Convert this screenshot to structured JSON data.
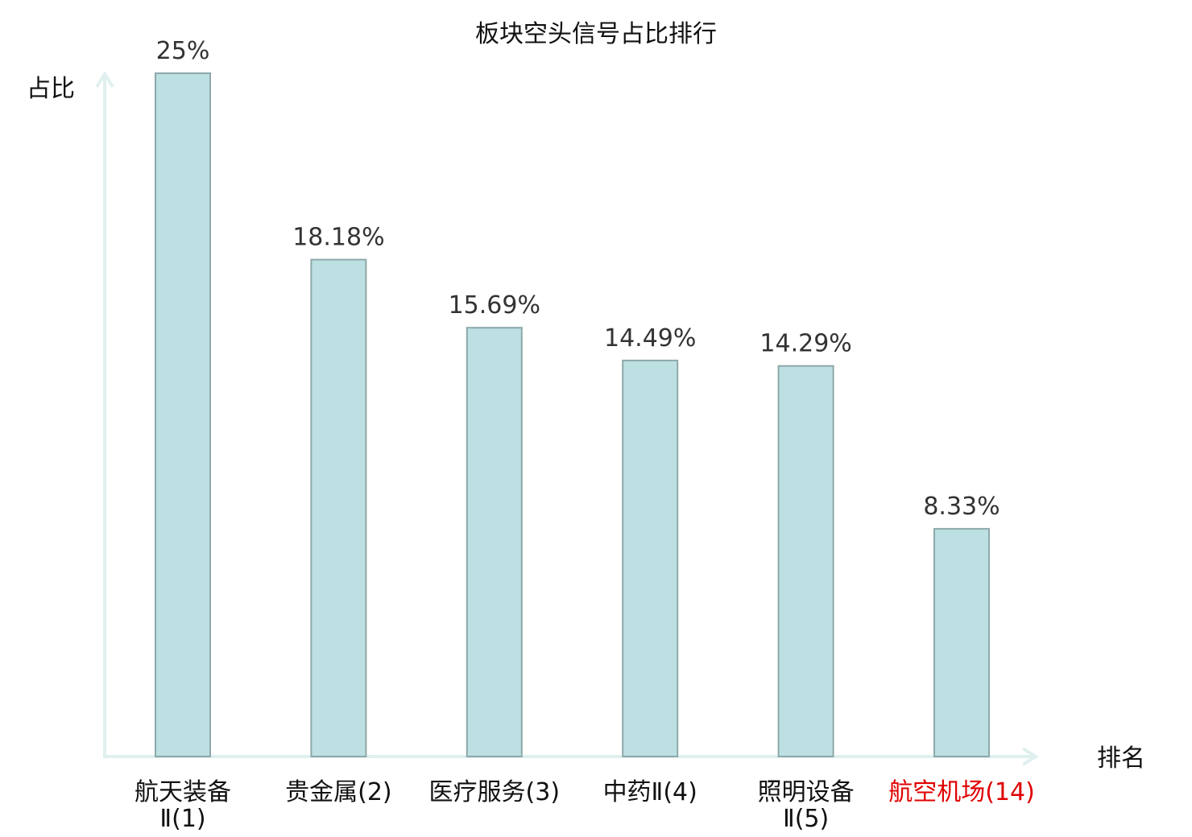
{
  "chart_data": {
    "type": "bar",
    "title": "板块空头信号占比排行",
    "xlabel": "排名",
    "ylabel": "占比",
    "ylim": [
      0,
      25
    ],
    "categories": [
      {
        "name": "航天装备Ⅱ(1)",
        "lines": [
          "航天装备",
          "Ⅱ(1)"
        ],
        "highlight": false
      },
      {
        "name": "贵金属(2)",
        "lines": [
          "贵金属(2)"
        ],
        "highlight": false
      },
      {
        "name": "医疗服务(3)",
        "lines": [
          "医疗服务(3)"
        ],
        "highlight": false
      },
      {
        "name": "中药Ⅱ(4)",
        "lines": [
          "中药Ⅱ(4)"
        ],
        "highlight": false
      },
      {
        "name": "照明设备Ⅱ(5)",
        "lines": [
          "照明设备",
          "Ⅱ(5)"
        ],
        "highlight": false
      },
      {
        "name": "航空机场(14)",
        "lines": [
          "航空机场(14)"
        ],
        "highlight": true
      }
    ],
    "values": [
      25,
      18.18,
      15.69,
      14.49,
      14.29,
      8.33
    ],
    "value_labels": [
      "25%",
      "18.18%",
      "15.69%",
      "14.49%",
      "14.29%",
      "8.33%"
    ],
    "colors": {
      "bar_fill": "#bde0e2",
      "bar_stroke": "#8ea8a9",
      "axis": "#dff0ee",
      "highlight_text": "#e00000"
    },
    "grid": false,
    "legend": "none"
  }
}
